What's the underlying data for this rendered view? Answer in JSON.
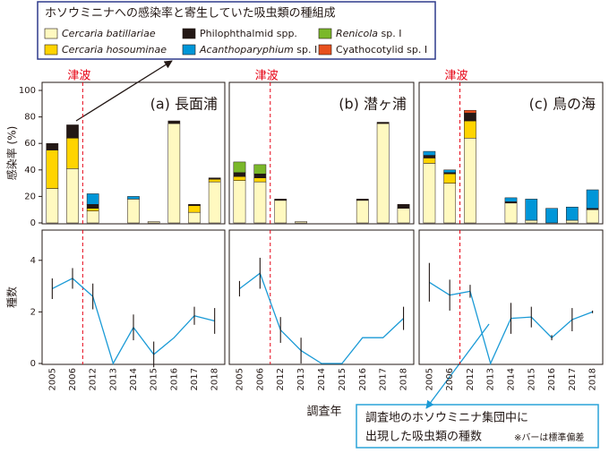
{
  "legend_title": "ホソウミニナへの感染率と寄生していた吸虫類の種組成",
  "callout": {
    "lines": [
      "調査地のホソウミニナ集団中に",
      "出現した吸虫類の種数"
    ],
    "note": "※バーは標準偏差"
  },
  "chart_data": [
    {
      "type": "stacked-bar",
      "title": "(a)  長面浦",
      "annotation": "津波",
      "ylabel": "感染率 (%)",
      "ylim": [
        0,
        100
      ],
      "yticks": [
        0,
        20,
        40,
        60,
        80,
        100
      ],
      "series": [
        {
          "name": "Cercaria batillariae",
          "italic": true,
          "color": "#fff9c0",
          "values": [
            26,
            41,
            9,
            0,
            18,
            1,
            75,
            8,
            31
          ]
        },
        {
          "name": "Cercaria hosouminae",
          "italic": true,
          "color": "#ffd400",
          "values": [
            29,
            23,
            2,
            0,
            0,
            0,
            0,
            5,
            2
          ]
        },
        {
          "name": "Philophthalmid spp.",
          "italic": false,
          "color": "#231815",
          "values": [
            5,
            10,
            3,
            0,
            0,
            0,
            2,
            1,
            1
          ]
        },
        {
          "name": "Acanthoparyphium sp. I",
          "italic": true,
          "color": "#0096d8",
          "values": [
            0,
            0,
            8,
            0,
            2,
            0,
            0,
            0,
            0
          ]
        },
        {
          "name": "Renicola sp. I",
          "italic": true,
          "color": "#7ab82a",
          "values": [
            0,
            0,
            0,
            0,
            0,
            0,
            0,
            0,
            0
          ]
        },
        {
          "name": "Cyathocotylid sp. I",
          "italic": false,
          "color": "#e8501e",
          "values": [
            0,
            0,
            0,
            0,
            0,
            0,
            0,
            0,
            0
          ]
        }
      ]
    },
    {
      "type": "stacked-bar",
      "title": "(b)  潜ヶ浦",
      "annotation": "津波",
      "series": [
        {
          "values": [
            32,
            31,
            17,
            1,
            0,
            0,
            17,
            75,
            11
          ]
        },
        {
          "values": [
            3,
            3,
            0,
            0,
            0,
            0,
            0,
            0,
            0
          ]
        },
        {
          "values": [
            3,
            3,
            1,
            0,
            0,
            0,
            1,
            1,
            3
          ]
        },
        {
          "values": [
            0,
            0,
            0,
            0,
            0,
            0,
            0,
            0,
            0
          ]
        },
        {
          "values": [
            8,
            7,
            0,
            0,
            0,
            0,
            0,
            0,
            0
          ]
        },
        {
          "values": [
            0,
            0,
            0,
            0,
            0,
            0,
            0,
            0,
            0
          ]
        }
      ]
    },
    {
      "type": "stacked-bar",
      "title": "(c)  鳥の海",
      "annotation": "津波",
      "series": [
        {
          "values": [
            45,
            30,
            64,
            0,
            15,
            2,
            0,
            2,
            10
          ]
        },
        {
          "values": [
            4,
            7,
            13,
            0,
            0,
            0,
            0,
            0,
            0
          ]
        },
        {
          "values": [
            2,
            1,
            6,
            0,
            1,
            0,
            0,
            0,
            1
          ]
        },
        {
          "values": [
            3,
            2,
            0,
            0,
            3,
            16,
            11,
            10,
            14
          ]
        },
        {
          "values": [
            0,
            0,
            0,
            0,
            0,
            0,
            0,
            0,
            0
          ]
        },
        {
          "values": [
            0,
            0,
            2,
            0,
            0,
            0,
            0,
            0,
            0
          ]
        }
      ]
    },
    {
      "type": "line",
      "ylabel": "種数",
      "ylim": [
        0,
        5
      ],
      "yticks": [
        0,
        2,
        4
      ],
      "categories": [
        "2005",
        "2006",
        "2012",
        "2013",
        "2014",
        "2015",
        "2016",
        "2017",
        "2018"
      ],
      "color": "#1a9ad6",
      "values": [
        2.9,
        3.3,
        2.6,
        0,
        1.4,
        0.35,
        1.0,
        1.85,
        1.65
      ],
      "errors": [
        0.4,
        0.4,
        0.5,
        null,
        0.5,
        0.5,
        null,
        0.35,
        0.5
      ]
    },
    {
      "type": "line",
      "xlabel": "調査年",
      "categories": [
        "2005",
        "2006",
        "2012",
        "2013",
        "2014",
        "2015",
        "2016",
        "2017",
        "2018"
      ],
      "color": "#1a9ad6",
      "values": [
        2.9,
        3.5,
        1.3,
        0.5,
        0,
        0,
        1.0,
        1.0,
        1.75
      ],
      "errors": [
        0.3,
        0.6,
        0.5,
        0.5,
        null,
        null,
        null,
        null,
        0.45
      ]
    },
    {
      "type": "line",
      "categories": [
        "2005",
        "2006",
        "2012",
        "2013",
        "2014",
        "2015",
        "2016",
        "2017",
        "2018"
      ],
      "color": "#1a9ad6",
      "values": [
        3.15,
        2.65,
        2.8,
        0,
        1.75,
        1.8,
        1.0,
        1.7,
        2.0
      ],
      "errors": [
        0.75,
        0.6,
        0.25,
        null,
        0.6,
        0.4,
        0.1,
        0.45,
        0.05
      ]
    }
  ]
}
